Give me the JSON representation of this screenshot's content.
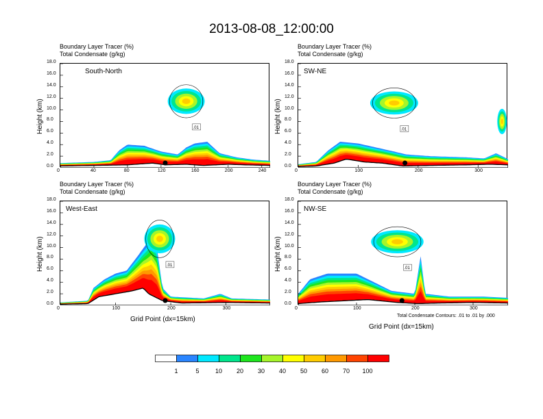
{
  "title": "2013-08-08_12:00:00",
  "var_labels": [
    "Boundary Layer Tracer   (%)",
    "Total Condensate   (g/kg)"
  ],
  "ylabel": "Height (km)",
  "xlabel": "Grid Point (dx=15km)",
  "contour_note": "Total Condensate Contours: .01 to .01 by .000",
  "chart_data": [
    {
      "type": "heatmap",
      "name": "South-North",
      "xlim": [
        0,
        250
      ],
      "ylim": [
        0,
        18
      ],
      "xticks": [
        "0",
        "40",
        "80",
        "120",
        "160",
        "200",
        "240"
      ],
      "yticks": [
        "0.0",
        "2.0",
        "4.0",
        "6.0",
        "8.0",
        "10.0",
        "12.0",
        "14.0",
        "16.0",
        "18.0"
      ],
      "terrain": [
        [
          0,
          0.3
        ],
        [
          40,
          0.4
        ],
        [
          80,
          0.5
        ],
        [
          110,
          0.8
        ],
        [
          125,
          0.5
        ],
        [
          150,
          0.6
        ],
        [
          170,
          0.4
        ],
        [
          200,
          0.6
        ],
        [
          220,
          0.5
        ],
        [
          250,
          0.4
        ]
      ],
      "tracer_top": [
        [
          0,
          0.8
        ],
        [
          40,
          1.0
        ],
        [
          60,
          1.3
        ],
        [
          70,
          3.0
        ],
        [
          80,
          4.0
        ],
        [
          100,
          3.8
        ],
        [
          120,
          2.8
        ],
        [
          140,
          2.3
        ],
        [
          150,
          3.5
        ],
        [
          160,
          4.2
        ],
        [
          175,
          4.5
        ],
        [
          190,
          2.5
        ],
        [
          210,
          1.8
        ],
        [
          230,
          1.4
        ],
        [
          250,
          1.2
        ]
      ],
      "cloud": [
        {
          "cx": 150,
          "cy": 11.5,
          "rx": 22,
          "ry": 2.2
        }
      ],
      "marker_x": 125,
      "contour_label": ".01"
    },
    {
      "type": "heatmap",
      "name": "SW-NE",
      "xlim": [
        0,
        350
      ],
      "ylim": [
        0,
        18
      ],
      "xticks": [
        "0",
        "100",
        "200",
        "300"
      ],
      "yticks": [
        "0.0",
        "2.0",
        "4.0",
        "6.0",
        "8.0",
        "10.0",
        "12.0",
        "14.0",
        "16.0",
        "18.0"
      ],
      "terrain": [
        [
          0,
          0.2
        ],
        [
          30,
          0.3
        ],
        [
          60,
          0.8
        ],
        [
          80,
          1.5
        ],
        [
          110,
          1.0
        ],
        [
          140,
          0.8
        ],
        [
          175,
          0.3
        ],
        [
          220,
          0.4
        ],
        [
          280,
          0.5
        ],
        [
          320,
          0.6
        ],
        [
          350,
          0.5
        ]
      ],
      "tracer_top": [
        [
          0,
          0.6
        ],
        [
          30,
          1.0
        ],
        [
          50,
          3.0
        ],
        [
          70,
          4.5
        ],
        [
          100,
          4.2
        ],
        [
          130,
          3.5
        ],
        [
          160,
          2.8
        ],
        [
          180,
          2.3
        ],
        [
          220,
          2.0
        ],
        [
          280,
          1.8
        ],
        [
          310,
          1.6
        ],
        [
          330,
          2.5
        ],
        [
          350,
          1.5
        ]
      ],
      "cloud": [
        {
          "cx": 160,
          "cy": 11.2,
          "rx": 40,
          "ry": 2.0
        },
        {
          "cx": 340,
          "cy": 8.0,
          "rx": 8,
          "ry": 2.2
        }
      ],
      "marker_x": 178,
      "contour_label": ".01"
    },
    {
      "type": "heatmap",
      "name": "West-East",
      "xlim": [
        0,
        380
      ],
      "ylim": [
        0,
        18
      ],
      "xticks": [
        "0",
        "100",
        "200",
        "300"
      ],
      "yticks": [
        "0.0",
        "2.0",
        "4.0",
        "6.0",
        "8.0",
        "10.0",
        "12.0",
        "14.0",
        "16.0",
        "18.0"
      ],
      "terrain": [
        [
          0,
          0.2
        ],
        [
          50,
          0.3
        ],
        [
          70,
          1.5
        ],
        [
          100,
          2.0
        ],
        [
          130,
          2.5
        ],
        [
          150,
          3.0
        ],
        [
          160,
          2.0
        ],
        [
          185,
          0.8
        ],
        [
          220,
          0.4
        ],
        [
          300,
          0.5
        ],
        [
          380,
          0.4
        ]
      ],
      "tracer_top": [
        [
          0,
          0.5
        ],
        [
          50,
          0.8
        ],
        [
          60,
          3.0
        ],
        [
          80,
          4.5
        ],
        [
          100,
          5.5
        ],
        [
          120,
          6.0
        ],
        [
          140,
          8.5
        ],
        [
          155,
          10.5
        ],
        [
          165,
          12.0
        ],
        [
          175,
          10.0
        ],
        [
          185,
          3.0
        ],
        [
          200,
          1.5
        ],
        [
          260,
          1.2
        ],
        [
          290,
          2.0
        ],
        [
          310,
          1.2
        ],
        [
          380,
          1.0
        ]
      ],
      "cloud": [
        {
          "cx": 180,
          "cy": 11.5,
          "rx": 28,
          "ry": 2.5
        }
      ],
      "marker_x": 190,
      "contour_label": ".01"
    },
    {
      "type": "heatmap",
      "name": "NW-SE",
      "xlim": [
        0,
        360
      ],
      "ylim": [
        0,
        18
      ],
      "xticks": [
        "0",
        "100",
        "200",
        "300"
      ],
      "yticks": [
        "0.0",
        "2.0",
        "4.0",
        "6.0",
        "8.0",
        "10.0",
        "12.0",
        "14.0",
        "16.0",
        "18.0"
      ],
      "terrain": [
        [
          0,
          0.3
        ],
        [
          40,
          0.6
        ],
        [
          80,
          0.8
        ],
        [
          120,
          1.0
        ],
        [
          170,
          0.5
        ],
        [
          205,
          0.3
        ],
        [
          240,
          0.4
        ],
        [
          300,
          0.5
        ],
        [
          360,
          0.4
        ]
      ],
      "tracer_top": [
        [
          0,
          2.0
        ],
        [
          20,
          4.5
        ],
        [
          50,
          5.5
        ],
        [
          100,
          5.5
        ],
        [
          130,
          4.0
        ],
        [
          160,
          2.5
        ],
        [
          200,
          2.0
        ],
        [
          210,
          8.5
        ],
        [
          218,
          2.0
        ],
        [
          260,
          1.5
        ],
        [
          320,
          1.5
        ],
        [
          360,
          1.3
        ]
      ],
      "cloud": [
        {
          "cx": 170,
          "cy": 11.0,
          "rx": 45,
          "ry": 2.0
        }
      ],
      "marker_x": 178,
      "contour_label": ".01"
    }
  ],
  "colorbar": {
    "labels": [
      "1",
      "5",
      "10",
      "20",
      "30",
      "40",
      "50",
      "60",
      "70",
      "100"
    ],
    "colors": [
      "#ffffff",
      "#2a85ff",
      "#00e8ff",
      "#00e68c",
      "#1ee61e",
      "#a6f52a",
      "#ffff00",
      "#ffcc00",
      "#ff9900",
      "#ff4400",
      "#ff0000"
    ]
  }
}
